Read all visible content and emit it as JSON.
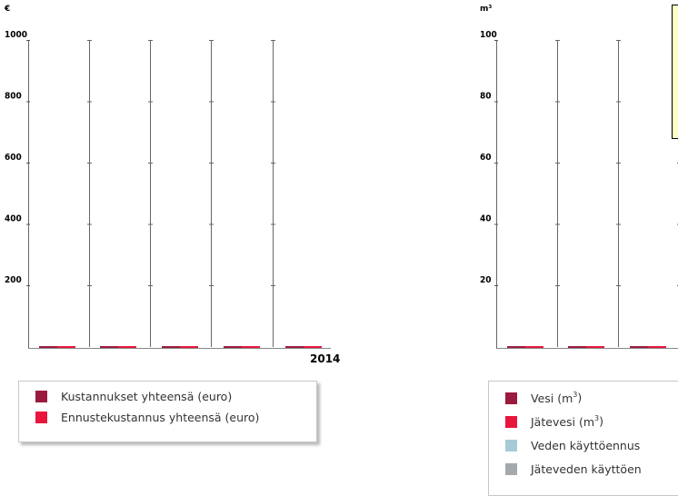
{
  "chart_data": [
    {
      "type": "bar",
      "unit_label": "€",
      "y_ticks": [
        "1000",
        "800",
        "600",
        "400",
        "200"
      ],
      "ylim": [
        0,
        1000
      ],
      "categories": [
        "",
        "",
        "",
        "",
        "2014"
      ],
      "series": [
        {
          "name": "Kustannukset yhteensä (euro)",
          "color": "#9b1b3e",
          "values": [
            0,
            0,
            0,
            0,
            0
          ]
        },
        {
          "name": "Ennustekustannus yhteensä (euro)",
          "color": "#e8163c",
          "values": [
            0,
            0,
            0,
            0,
            0
          ]
        }
      ],
      "legend_position": "bottom"
    },
    {
      "type": "bar",
      "unit_label": "m³",
      "y_ticks": [
        "100",
        "80",
        "60",
        "40",
        "20"
      ],
      "ylim": [
        0,
        100
      ],
      "categories": [
        "",
        "",
        ""
      ],
      "series": [
        {
          "name": "Vesi (m",
          "color": "#9b1b3e",
          "values": [
            0,
            0,
            0
          ]
        },
        {
          "name": "Jätevesi (m",
          "color": "#e8163c",
          "values": [
            0,
            0,
            0
          ]
        },
        {
          "name": "Veden käyttöennus",
          "color": "#a6cbd6"
        },
        {
          "name": "Jäteveden käyttöen",
          "color": "#a4a9ad"
        }
      ],
      "legend_position": "bottom"
    }
  ]
}
